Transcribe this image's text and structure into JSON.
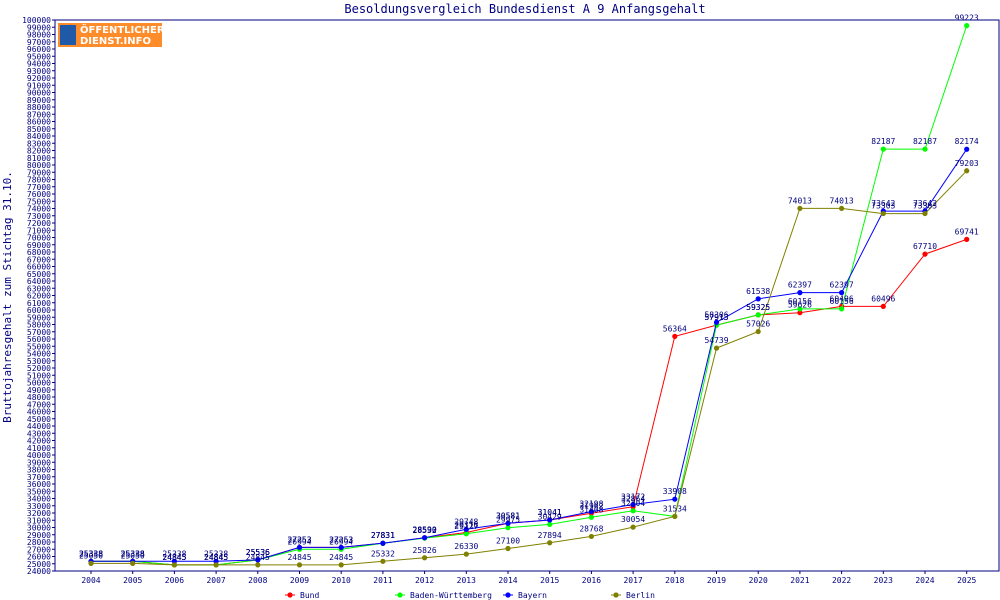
{
  "chart_data": {
    "type": "line",
    "title": "Besoldungsvergleich Bundesdienst A 9 Anfangsgehalt",
    "ylabel": "Bruttojahresgehalt zum Stichtag 31.10.",
    "xlabel": "",
    "ylim": [
      24000,
      100000
    ],
    "ytick_step": 1000,
    "grid": false,
    "legend_position": "bottom",
    "x": [
      "2004",
      "2005",
      "2006",
      "2007",
      "2008",
      "2009",
      "2010",
      "2011",
      "2012",
      "2013",
      "2014",
      "2015",
      "2016",
      "2017",
      "2018",
      "2019",
      "2020",
      "2021",
      "2022",
      "2023",
      "2024",
      "2025"
    ],
    "series": [
      {
        "name": "Bund",
        "color": "#ff0000",
        "values": [
          25338,
          25338,
          24845,
          24845,
          25536,
          27253,
          27253,
          27831,
          28590,
          29316,
          30581,
          31041,
          31962,
          32864,
          56364,
          57913,
          59325,
          59626,
          60496,
          60496,
          67710,
          69741
        ]
      },
      {
        "name": "Baden-Württemberg",
        "color": "#00ff00",
        "values": [
          25338,
          25338,
          24845,
          24845,
          25536,
          26994,
          26994,
          27831,
          28532,
          29127,
          29975,
          30429,
          31408,
          32304,
          31534,
          57913,
          59325,
          60156,
          60156,
          82187,
          82187,
          99223
        ]
      },
      {
        "name": "Bayern",
        "color": "#0000ff",
        "values": [
          25338,
          25338,
          25338,
          25338,
          25536,
          27253,
          27253,
          27831,
          28590,
          29748,
          30581,
          31041,
          32198,
          33172,
          33908,
          58306,
          61538,
          62397,
          62397,
          73642,
          73642,
          82174
        ]
      },
      {
        "name": "Berlin",
        "color": "#808000",
        "values": [
          25050,
          25050,
          24845,
          24845,
          24845,
          24845,
          24845,
          25332,
          25826,
          26330,
          27100,
          27894,
          28768,
          30054,
          31534,
          54739,
          57026,
          74013,
          74013,
          73303,
          73303,
          79203
        ]
      }
    ],
    "data_labels": [
      [
        25338,
        25338,
        24845,
        24845,
        25536,
        27253,
        27253,
        27831,
        28590,
        29316,
        30581,
        31041,
        31962,
        32864,
        56364,
        57913,
        59325,
        59626,
        60496,
        60496,
        67710,
        69741
      ],
      [
        25338,
        25338,
        24845,
        24845,
        25536,
        26994,
        26994,
        27831,
        28532,
        29127,
        29975,
        30429,
        31408,
        32304,
        null,
        57913,
        59325,
        60156,
        60156,
        82187,
        82187,
        99223
      ],
      [
        25338,
        25338,
        25338,
        25338,
        25536,
        27253,
        27253,
        27831,
        28590,
        29748,
        30581,
        31041,
        32198,
        33172,
        33908,
        58306,
        61538,
        62397,
        62397,
        73642,
        73642,
        82174
      ],
      [
        25050,
        25050,
        24845,
        24845,
        24845,
        24845,
        24845,
        25332,
        25826,
        26330,
        27100,
        27894,
        28768,
        30054,
        31534,
        54739,
        57026,
        74013,
        74013,
        73303,
        73303,
        79203
      ]
    ]
  },
  "logo": {
    "line1": "ÖFFENTLICHER",
    "line2": "DIENST.INFO"
  }
}
